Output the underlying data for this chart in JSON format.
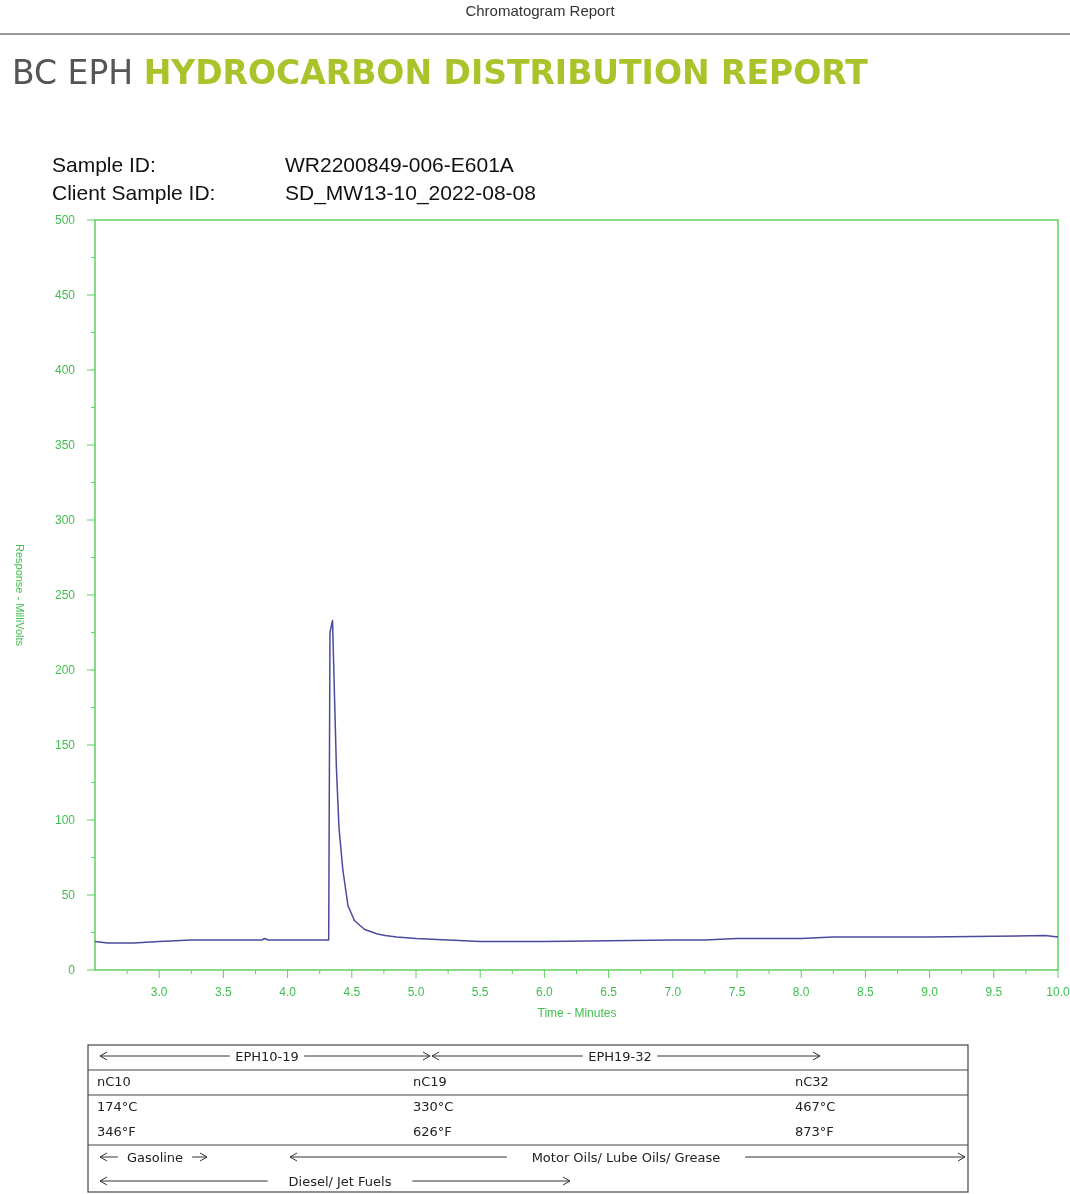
{
  "chart_data": {
    "type": "line",
    "title": "BC EPH HYDROCARBON DISTRIBUTION REPORT",
    "xlabel": "Time - Minutes",
    "ylabel": "Response - MilliVolts",
    "annotations": [
      "Chromatogram Report",
      "Sample ID:",
      "WR2200849-006-E601A",
      "Client Sample ID:",
      "SD_MW13-10_2022-08-08",
      "EPH10-19",
      "EPH19-32",
      "nC10",
      "nC19",
      "nC32",
      "174°C",
      "330°C",
      "467°C",
      "346°F",
      "626°F",
      "873°F",
      "Gasoline",
      "Motor Oils/ Lube Oils/ Grease",
      "Diesel/ Jet Fuels"
    ],
    "xlim": [
      2.5,
      10
    ],
    "xticks": [
      {
        "value": 2.75,
        "label": null
      },
      {
        "value": 3,
        "label": "3.0"
      },
      {
        "value": 3.25,
        "label": null
      },
      {
        "value": 3.5,
        "label": "3.5"
      },
      {
        "value": 3.75,
        "label": null
      },
      {
        "value": 4,
        "label": "4.0"
      },
      {
        "value": 4.25,
        "label": null
      },
      {
        "value": 4.5,
        "label": "4.5"
      },
      {
        "value": 4.75,
        "label": null
      },
      {
        "value": 5,
        "label": "5.0"
      },
      {
        "value": 5.25,
        "label": null
      },
      {
        "value": 5.5,
        "label": "5.5"
      },
      {
        "value": 5.75,
        "label": null
      },
      {
        "value": 6,
        "label": "6.0"
      },
      {
        "value": 6.25,
        "label": null
      },
      {
        "value": 6.5,
        "label": "6.5"
      },
      {
        "value": 6.75,
        "label": null
      },
      {
        "value": 7,
        "label": "7.0"
      },
      {
        "value": 7.25,
        "label": null
      },
      {
        "value": 7.5,
        "label": "7.5"
      },
      {
        "value": 7.75,
        "label": null
      },
      {
        "value": 8,
        "label": "8.0"
      },
      {
        "value": 8.25,
        "label": null
      },
      {
        "value": 8.5,
        "label": "8.5"
      },
      {
        "value": 8.75,
        "label": null
      },
      {
        "value": 9,
        "label": "9.0"
      },
      {
        "value": 9.25,
        "label": null
      },
      {
        "value": 9.5,
        "label": "9.5"
      },
      {
        "value": 9.75,
        "label": null
      },
      {
        "value": 10,
        "label": "10.0"
      }
    ],
    "ylim": [
      0,
      500
    ],
    "yticks": [
      0,
      {
        "value": 25,
        "label": null
      },
      50,
      {
        "value": 75,
        "label": null
      },
      100,
      {
        "value": 125,
        "label": null
      },
      150,
      {
        "value": 175,
        "label": null
      },
      200,
      {
        "value": 225,
        "label": null
      },
      250,
      {
        "value": 275,
        "label": null
      },
      300,
      {
        "value": 325,
        "label": null
      },
      350,
      {
        "value": 375,
        "label": null
      },
      400,
      {
        "value": 425,
        "label": null
      },
      450,
      {
        "value": 475,
        "label": null
      },
      500
    ],
    "grid": false,
    "marker": "none",
    "line_style": "solid",
    "x": [
      2.5,
      2.6,
      2.8,
      3.0,
      3.25,
      3.5,
      3.8,
      3.82,
      3.85,
      4.0,
      4.2,
      4.3,
      4.32,
      4.33,
      4.35,
      4.36,
      4.38,
      4.4,
      4.43,
      4.47,
      4.52,
      4.6,
      4.7,
      4.76,
      4.85,
      5.0,
      5.25,
      5.5,
      5.75,
      6.0,
      6.5,
      7.0,
      7.25,
      7.5,
      8.0,
      8.25,
      8.5,
      9.0,
      9.5,
      9.9,
      10.0
    ],
    "series": [
      {
        "color": "#4b4b9e",
        "values": [
          19,
          18,
          18,
          19,
          20,
          20,
          20,
          21,
          20,
          20,
          20,
          20,
          20,
          225,
          233,
          200,
          135,
          95,
          67,
          43,
          33,
          27,
          24,
          23,
          22,
          21,
          20,
          19,
          19,
          19,
          19.5,
          20,
          20,
          21,
          21,
          22,
          22,
          22,
          22.5,
          23,
          22
        ]
      }
    ]
  }
}
